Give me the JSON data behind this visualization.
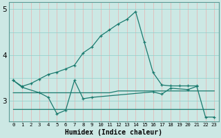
{
  "xlabel": "Humidex (Indice chaleur)",
  "x": [
    0,
    1,
    2,
    3,
    4,
    5,
    6,
    7,
    8,
    9,
    10,
    11,
    12,
    13,
    14,
    15,
    16,
    17,
    18,
    19,
    20,
    21,
    22,
    23
  ],
  "line_smooth": [
    3.45,
    3.32,
    3.38,
    3.48,
    3.58,
    3.63,
    3.7,
    3.78,
    4.05,
    4.18,
    4.42,
    4.55,
    4.68,
    4.78,
    4.95,
    4.28,
    3.62,
    3.35,
    3.33,
    3.33,
    3.33,
    3.33,
    null,
    null
  ],
  "line_spiky": [
    3.45,
    3.3,
    null,
    3.18,
    3.08,
    2.72,
    2.8,
    3.45,
    3.05,
    3.08,
    null,
    null,
    null,
    null,
    null,
    null,
    3.2,
    3.15,
    3.28,
    null,
    3.25,
    3.32,
    2.65,
    2.65
  ],
  "line_flat_upper": [
    3.18,
    3.18,
    3.18,
    3.18,
    3.18,
    3.18,
    3.18,
    3.18,
    3.18,
    3.18,
    3.18,
    3.18,
    3.22,
    3.22,
    3.22,
    3.22,
    3.22,
    3.22,
    3.22,
    3.22,
    3.22,
    3.22,
    3.22,
    3.22
  ],
  "line_flat_lower": [
    2.82,
    2.82,
    2.82,
    2.82,
    2.82,
    2.82,
    2.82,
    2.82,
    2.82,
    2.82,
    2.82,
    2.82,
    2.82,
    2.82,
    2.82,
    2.82,
    2.82,
    2.82,
    2.82,
    2.82,
    2.82,
    2.82,
    2.82,
    2.82
  ],
  "color_main": "#1a7a6e",
  "bg_plot": "#cce8e4",
  "bg_fig": "#cce8e4",
  "grid_color_v": "#e8b0b0",
  "grid_color_h": "#8ececa",
  "ylim": [
    2.55,
    5.15
  ],
  "xlim": [
    -0.5,
    23.5
  ],
  "yticks": [
    3,
    4,
    5
  ],
  "xticks": [
    0,
    1,
    2,
    3,
    4,
    5,
    6,
    7,
    8,
    9,
    10,
    11,
    12,
    13,
    14,
    15,
    16,
    17,
    18,
    19,
    20,
    21,
    22,
    23
  ]
}
